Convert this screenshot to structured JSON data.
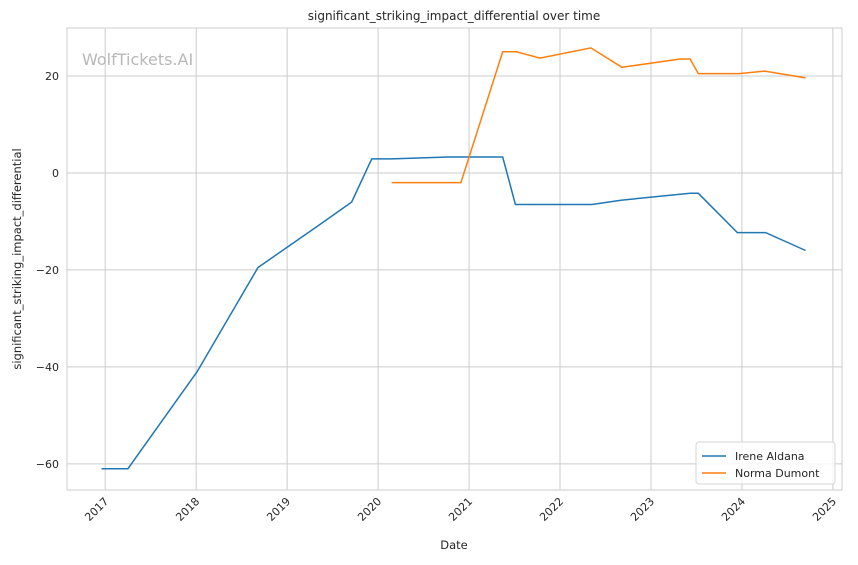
{
  "chart_data": {
    "type": "line",
    "title": "significant_striking_impact_differential over time",
    "xlabel": "Date",
    "ylabel": "significant_striking_impact_differential",
    "watermark": "WolfTickets.AI",
    "xlim": [
      2016.58,
      2025.1
    ],
    "ylim": [
      -65.4,
      29.9
    ],
    "xticks": [
      2017,
      2018,
      2019,
      2020,
      2021,
      2022,
      2023,
      2024,
      2025
    ],
    "xtick_labels": [
      "2017",
      "2018",
      "2019",
      "2020",
      "2021",
      "2022",
      "2023",
      "2024",
      "2025"
    ],
    "yticks": [
      20,
      0,
      -20,
      -40,
      -60
    ],
    "ytick_labels": [
      "20",
      "0",
      "−20",
      "−40",
      "−60"
    ],
    "grid": true,
    "legend_position": "bottom-right",
    "series": [
      {
        "name": "Irene Aldana",
        "color": "#1f77b4",
        "x": [
          2016.96,
          2017.25,
          2018.01,
          2018.68,
          2019.37,
          2019.71,
          2019.93,
          2020.15,
          2020.77,
          2021.37,
          2021.51,
          2022.35,
          2022.68,
          2023.43,
          2023.52,
          2023.95,
          2024.26,
          2024.7
        ],
        "y": [
          -61,
          -61,
          -41,
          -19.5,
          -10.5,
          -6,
          2.9,
          2.9,
          3.3,
          3.3,
          -6.5,
          -6.5,
          -5.6,
          -4.2,
          -4.2,
          -12.3,
          -12.3,
          -16
        ]
      },
      {
        "name": "Norma Dumont",
        "color": "#ff7f0e",
        "x": [
          2020.15,
          2020.91,
          2021.37,
          2021.52,
          2021.78,
          2022.34,
          2022.68,
          2023.32,
          2023.43,
          2023.52,
          2023.97,
          2024.25,
          2024.7
        ],
        "y": [
          -2,
          -2,
          25,
          25,
          23.7,
          25.8,
          21.8,
          23.5,
          23.5,
          20.5,
          20.5,
          21,
          19.6
        ]
      }
    ]
  }
}
